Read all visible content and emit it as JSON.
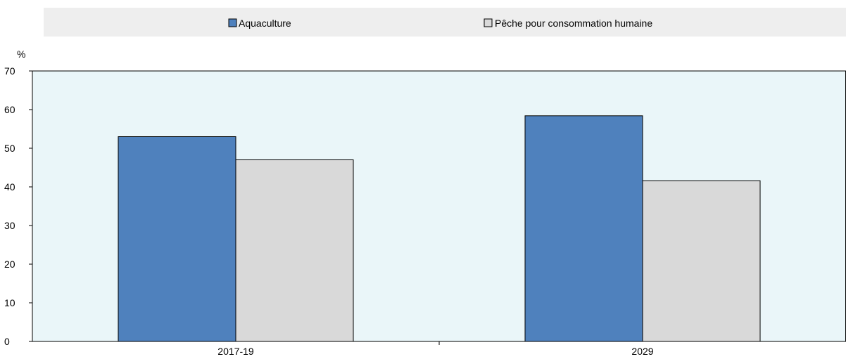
{
  "chart_data": {
    "type": "bar",
    "categories": [
      "2017-19",
      "2029"
    ],
    "series": [
      {
        "name": "Aquaculture",
        "values": [
          53,
          58.4
        ],
        "color": "#4f81bd"
      },
      {
        "name": "Pêche pour consommation humaine",
        "values": [
          47,
          41.6
        ],
        "color": "#d9d9d9"
      }
    ],
    "ylabel": "%",
    "ylim": [
      0,
      70
    ],
    "yticks": [
      0,
      10,
      20,
      30,
      40,
      50,
      60,
      70
    ],
    "grid": false,
    "legend_position": "top",
    "colors": {
      "plot_background": "#eaf6f9",
      "legend_background": "#eeeeee",
      "bar_stroke": "#000000"
    }
  }
}
